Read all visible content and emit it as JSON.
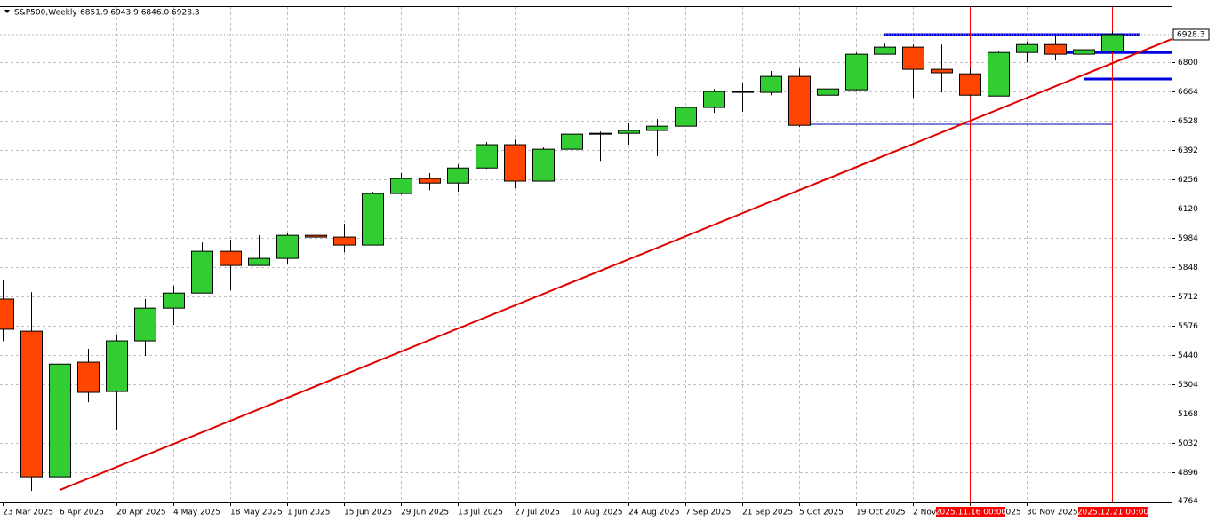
{
  "chart_data": {
    "type": "candlestick",
    "title": "S&P500,Weekly",
    "ohlc_label": "6851.9 6943.9 6846.0 6928.3",
    "categories": [
      "23 Mar 2025",
      null,
      "6 Apr 2025",
      null,
      "20 Apr 2025",
      null,
      "4 May 2025",
      null,
      "18 May 2025",
      null,
      "1 Jun 2025",
      null,
      "15 Jun 2025",
      null,
      "29 Jun 2025",
      null,
      "13 Jul 2025",
      null,
      "27 Jul 2025",
      null,
      "10 Aug 2025",
      null,
      "24 Aug 2025",
      null,
      "7 Sep 2025",
      null,
      "21 Sep 2025",
      null,
      "5 Oct 2025",
      null,
      "19 Oct 2025",
      null,
      "2 Nov 2025",
      null,
      "16 Nov 2025",
      null,
      "30 Nov 2025",
      null,
      null,
      null
    ],
    "open": [
      5700,
      5551,
      4875,
      5407,
      5271,
      5506,
      5658,
      5728,
      5922,
      5856,
      5889,
      5996,
      5988,
      5951,
      6190,
      6260,
      6239,
      6309,
      6417,
      6248,
      6396,
      6466,
      6470,
      6483,
      6503,
      6590,
      6664,
      6660,
      6734,
      6647,
      6672,
      6837,
      6870,
      6767,
      6746,
      6643,
      6845,
      6882,
      6837,
      6851.9
    ],
    "high": [
      5790,
      5732,
      5493,
      5469,
      5535,
      5700,
      5761,
      5963,
      5976,
      5996,
      6005,
      6075,
      6050,
      6198,
      6285,
      6285,
      6326,
      6429,
      6441,
      6404,
      6495,
      6478,
      6516,
      6536,
      6590,
      6676,
      6701,
      6759,
      6771,
      6734,
      6845,
      6886,
      6882,
      6882,
      6771,
      6854,
      6895,
      6932,
      6866,
      6943.9
    ],
    "low": [
      5505,
      4809,
      4820,
      5221,
      5093,
      5436,
      5580,
      5728,
      5741,
      5856,
      5864,
      5922,
      5918,
      5951,
      6186,
      6206,
      6198,
      6305,
      6215,
      6248,
      6396,
      6342,
      6417,
      6363,
      6503,
      6565,
      6569,
      6647,
      6499,
      6540,
      6664,
      6837,
      6635,
      6660,
      6643,
      6643,
      6800,
      6808,
      6730,
      6846.0
    ],
    "close": [
      5560,
      4875,
      5398,
      5267,
      5506,
      5658,
      5728,
      5922,
      5856,
      5889,
      5996,
      5988,
      5951,
      6190,
      6260,
      6239,
      6309,
      6417,
      6248,
      6396,
      6466,
      6470,
      6483,
      6503,
      6590,
      6664,
      6660,
      6734,
      6507,
      6676,
      6837,
      6870,
      6767,
      6751,
      6647,
      6845,
      6882,
      6837,
      6858,
      6928.3
    ],
    "up_color": "#32cd32",
    "down_color": "#ff4500",
    "ylim": [
      4756,
      7056
    ],
    "yticks": [
      4764,
      4896,
      5032,
      5168,
      5304,
      5440,
      5576,
      5712,
      5848,
      5984,
      6120,
      6256,
      6392,
      6528,
      6664,
      6800
    ],
    "grid": true,
    "trendline": {
      "values": [
        4813,
        6907
      ],
      "color": "#e00000"
    },
    "hlines": [
      {
        "value": 6928,
        "color": "#0000e0"
      },
      {
        "value": 6845,
        "color": "#0000e0"
      },
      {
        "value": 6722,
        "color": "#0000e0"
      },
      {
        "value": 6512,
        "color": "#0000c0"
      }
    ],
    "vlines": [
      {
        "label": "2025.11.16 00:00",
        "color": "#ff0000"
      },
      {
        "label": "2025.12.21 00:00",
        "color": "#ff0000"
      }
    ]
  }
}
